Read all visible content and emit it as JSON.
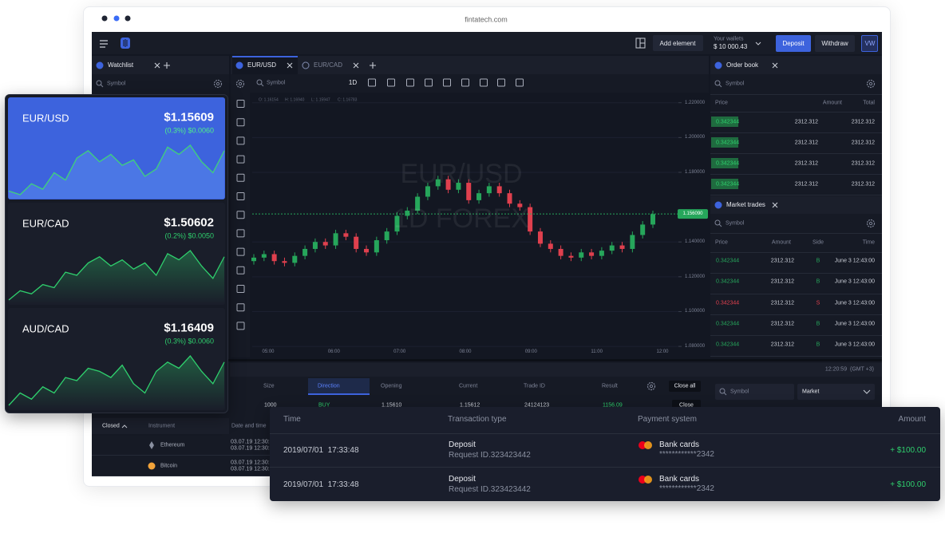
{
  "browser": {
    "url": "fintatech.com"
  },
  "topbar": {
    "add_element": "Add element",
    "wallet_label": "Your wallets",
    "wallet_value": "$ 10 000.43",
    "deposit": "Deposit",
    "withdraw": "Withdraw",
    "avatar": "VW"
  },
  "watchlist": {
    "tab": "Watchlist",
    "search": "Symbol",
    "cards": [
      {
        "pair": "EUR/USD",
        "price": "$1.15609",
        "change": "(0.3%) $0.0060",
        "spark": [
          30,
          28,
          34,
          31,
          40,
          36,
          48,
          52,
          46,
          50,
          44,
          47,
          38,
          42,
          54,
          50,
          55,
          46,
          40,
          52
        ]
      },
      {
        "pair": "EUR/CAD",
        "price": "$1.50602",
        "change": "(0.2%) $0.0050",
        "spark": [
          20,
          26,
          24,
          30,
          28,
          38,
          36,
          44,
          48,
          42,
          46,
          40,
          44,
          36,
          50,
          46,
          52,
          42,
          34,
          48
        ]
      },
      {
        "pair": "AUD/CAD",
        "price": "$1.16409",
        "change": "(0.3%) $0.0060",
        "spark": [
          22,
          30,
          26,
          34,
          30,
          40,
          38,
          46,
          44,
          40,
          48,
          36,
          30,
          44,
          50,
          46,
          54,
          44,
          36,
          50
        ]
      }
    ]
  },
  "chart_tabs": [
    "EUR/USD",
    "EUR/CAD"
  ],
  "chart_toolbar": {
    "search": "Symbol",
    "interval": "1D",
    "ohlc": [
      "O: 1.16154",
      "H: 1.16940",
      "L: 1.15947",
      "C: 1.16783"
    ]
  },
  "chart_data": {
    "type": "candlestick",
    "watermark": [
      "EUR/USD",
      "1D FOREX"
    ],
    "x_labels": [
      "05:00",
      "06:00",
      "07:00",
      "08:00",
      "09:00",
      "11:00",
      "12:00"
    ],
    "open": [
      1.129,
      1.131,
      1.133,
      1.129,
      1.128,
      1.132,
      1.136,
      1.14,
      1.138,
      1.145,
      1.143,
      1.136,
      1.134,
      1.141,
      1.146,
      1.155,
      1.158,
      1.166,
      1.172,
      1.176,
      1.17,
      1.174,
      1.164,
      1.168,
      1.172,
      1.168,
      1.162,
      1.16,
      1.146,
      1.139,
      1.136,
      1.132,
      1.131,
      1.134,
      1.132,
      1.135,
      1.138,
      1.136,
      1.144,
      1.15
    ],
    "close": [
      1.131,
      1.133,
      1.129,
      1.128,
      1.132,
      1.136,
      1.14,
      1.138,
      1.145,
      1.143,
      1.136,
      1.134,
      1.141,
      1.146,
      1.155,
      1.158,
      1.166,
      1.172,
      1.176,
      1.17,
      1.174,
      1.164,
      1.168,
      1.172,
      1.168,
      1.162,
      1.16,
      1.146,
      1.139,
      1.136,
      1.132,
      1.131,
      1.134,
      1.132,
      1.135,
      1.138,
      1.136,
      1.144,
      1.15,
      1.156
    ],
    "high": [
      1.133,
      1.135,
      1.135,
      1.131,
      1.134,
      1.138,
      1.142,
      1.142,
      1.147,
      1.147,
      1.145,
      1.138,
      1.143,
      1.148,
      1.157,
      1.16,
      1.168,
      1.174,
      1.178,
      1.178,
      1.176,
      1.176,
      1.17,
      1.174,
      1.174,
      1.17,
      1.164,
      1.162,
      1.148,
      1.141,
      1.138,
      1.134,
      1.136,
      1.136,
      1.137,
      1.14,
      1.14,
      1.146,
      1.152,
      1.158
    ],
    "low": [
      1.127,
      1.129,
      1.127,
      1.126,
      1.126,
      1.13,
      1.134,
      1.136,
      1.136,
      1.141,
      1.134,
      1.132,
      1.132,
      1.139,
      1.144,
      1.153,
      1.156,
      1.164,
      1.17,
      1.168,
      1.168,
      1.162,
      1.162,
      1.166,
      1.166,
      1.16,
      1.158,
      1.144,
      1.137,
      1.134,
      1.13,
      1.129,
      1.129,
      1.13,
      1.13,
      1.133,
      1.134,
      1.134,
      1.142,
      1.148
    ],
    "ylim": [
      1.075,
      1.224
    ],
    "yticks": [
      {
        "value": 1.22,
        "label": "1.220000"
      },
      {
        "value": 1.2,
        "label": "1.200000"
      },
      {
        "value": 1.18,
        "label": "1.180000"
      },
      {
        "value": 1.14,
        "label": "1.140000"
      },
      {
        "value": 1.12,
        "label": "1.120000"
      },
      {
        "value": 1.1,
        "label": "1.100000"
      },
      {
        "value": 1.08,
        "label": "1.080000"
      }
    ],
    "last_price": {
      "value": 1.15609,
      "label": "1.156090"
    },
    "colors": {
      "up": "#26a65b",
      "down": "#e0404e"
    },
    "grid": true
  },
  "order_book": {
    "tab": "Order book",
    "search": "Symbol",
    "headers": [
      "Price",
      "Amount",
      "Total"
    ],
    "rows": [
      [
        "0.342344",
        "2312.312",
        "2312.312"
      ],
      [
        "0.342344",
        "2312.312",
        "2312.312"
      ],
      [
        "0.342344",
        "2312.312",
        "2312.312"
      ],
      [
        "0.342344",
        "2312.312",
        "2312.312"
      ]
    ]
  },
  "market_trades": {
    "tab": "Market trades",
    "search": "Symbol",
    "headers": [
      "Price",
      "Amount",
      "Side",
      "Time"
    ],
    "rows": [
      {
        "price": "0.342344",
        "amount": "2312.312",
        "side": "B",
        "time": "June 3 12:43:00",
        "color": "#26a65b"
      },
      {
        "price": "0.342344",
        "amount": "2312.312",
        "side": "B",
        "time": "June 3 12:43:00",
        "color": "#26a65b"
      },
      {
        "price": "0.342344",
        "amount": "2312.312",
        "side": "S",
        "time": "June 3 12:43:00",
        "color": "#e0404e"
      },
      {
        "price": "0.342344",
        "amount": "2312.312",
        "side": "B",
        "time": "June 3 12:43:00",
        "color": "#26a65b"
      },
      {
        "price": "0.342344",
        "amount": "2312.312",
        "side": "B",
        "time": "June 3 12:43:00",
        "color": "#26a65b"
      }
    ]
  },
  "positions": {
    "headers": [
      "Size",
      "Direction",
      "Opening",
      "Current",
      "Trade ID",
      "Result"
    ],
    "close_all": "Close all",
    "row": [
      "1000",
      "BUY",
      "1.15610",
      "1.15612",
      "24124123",
      "1156.09"
    ],
    "close": "Close"
  },
  "clock": "12:20:59  (GMT +3)",
  "order_form": {
    "search": "Symbol",
    "order_type": "Market"
  },
  "closed": {
    "tab": "Closed",
    "headers": [
      "Instrument",
      "Date and time"
    ],
    "rows": [
      {
        "instrument": "Ethereum",
        "dates": [
          "03.07.19 12:30:20",
          "03.07.19 12:30:20"
        ]
      },
      {
        "instrument": "Bitcoin",
        "dates": [
          "03.07.19 12:30:20",
          "03.07.19 12:30:20"
        ]
      }
    ]
  },
  "transactions": {
    "headers": [
      "Time",
      "Transaction type",
      "Payment system",
      "Amount"
    ],
    "rows": [
      {
        "time": "2019/07/01  17:33:48",
        "type": "Deposit",
        "request": "Request ID.323423442",
        "method": "Bank cards",
        "card": "************2342",
        "amount": "+ $100.00"
      },
      {
        "time": "2019/07/01  17:33:48",
        "type": "Deposit",
        "request": "Request ID.323423442",
        "method": "Bank cards",
        "card": "************2342",
        "amount": "+ $100.00"
      }
    ]
  }
}
